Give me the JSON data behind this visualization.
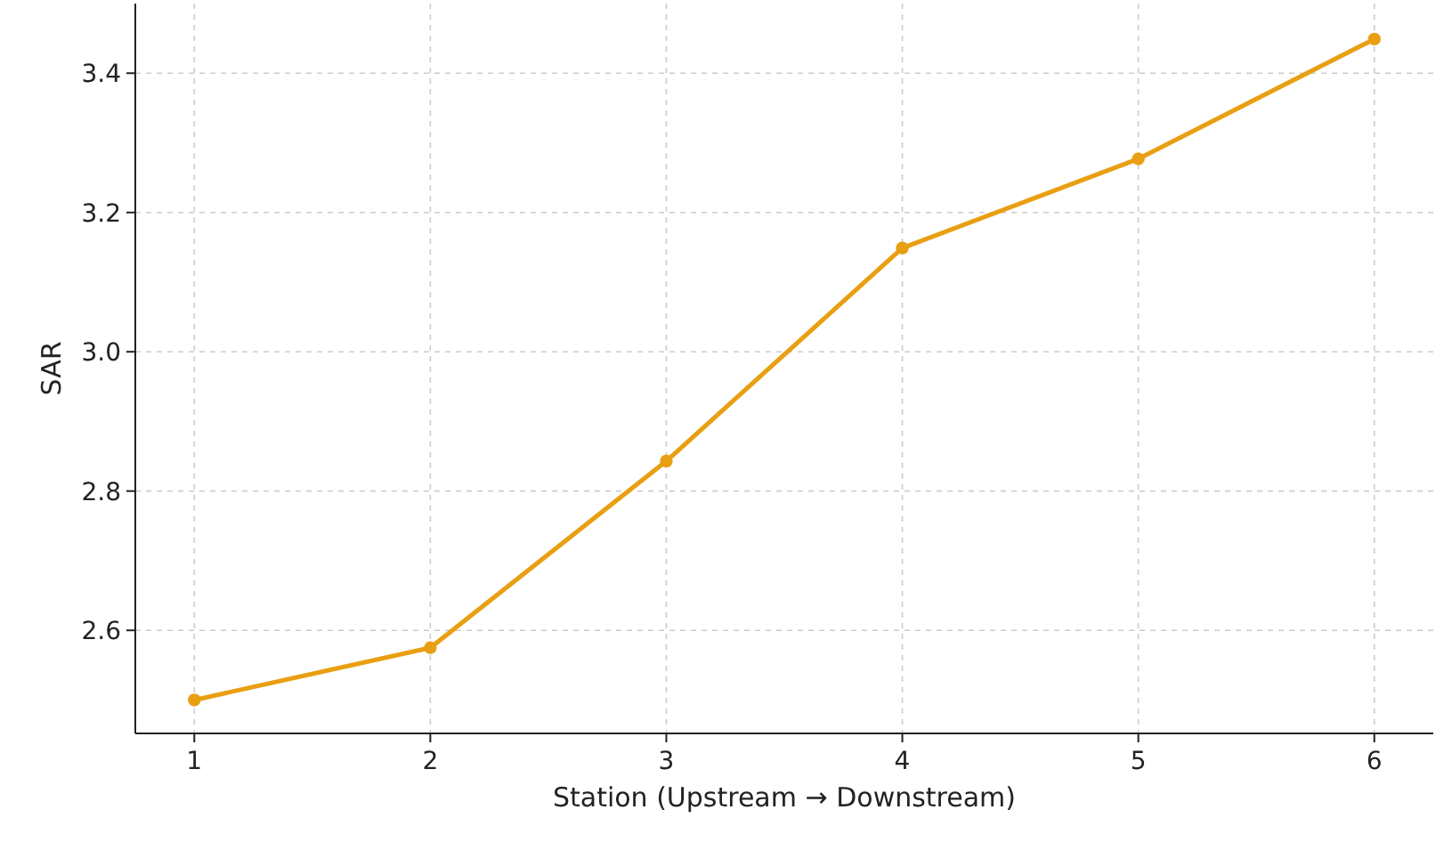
{
  "chart_data": {
    "type": "line",
    "xlabel": "Station (Upstream → Downstream)",
    "ylabel": "SAR",
    "x": [
      1,
      2,
      3,
      4,
      5,
      6
    ],
    "series": [
      {
        "color": "#e89f12",
        "values": [
          2.5,
          2.575,
          2.843,
          3.149,
          3.277,
          3.449
        ]
      }
    ],
    "xlim": [
      0.75,
      6.25
    ],
    "xticks": [
      1,
      2,
      3,
      4,
      5,
      6
    ],
    "ylim": [
      2.452,
      3.5
    ],
    "yticks": [
      {
        "value": 2.6,
        "label": "2.6"
      },
      {
        "value": 2.8,
        "label": "2.8"
      },
      {
        "value": 3.0,
        "label": "3.0"
      },
      {
        "value": 3.2,
        "label": "3.2"
      },
      {
        "value": 3.4,
        "label": "3.4"
      }
    ],
    "grid": true,
    "marker": "circle",
    "line_style": "solid"
  }
}
